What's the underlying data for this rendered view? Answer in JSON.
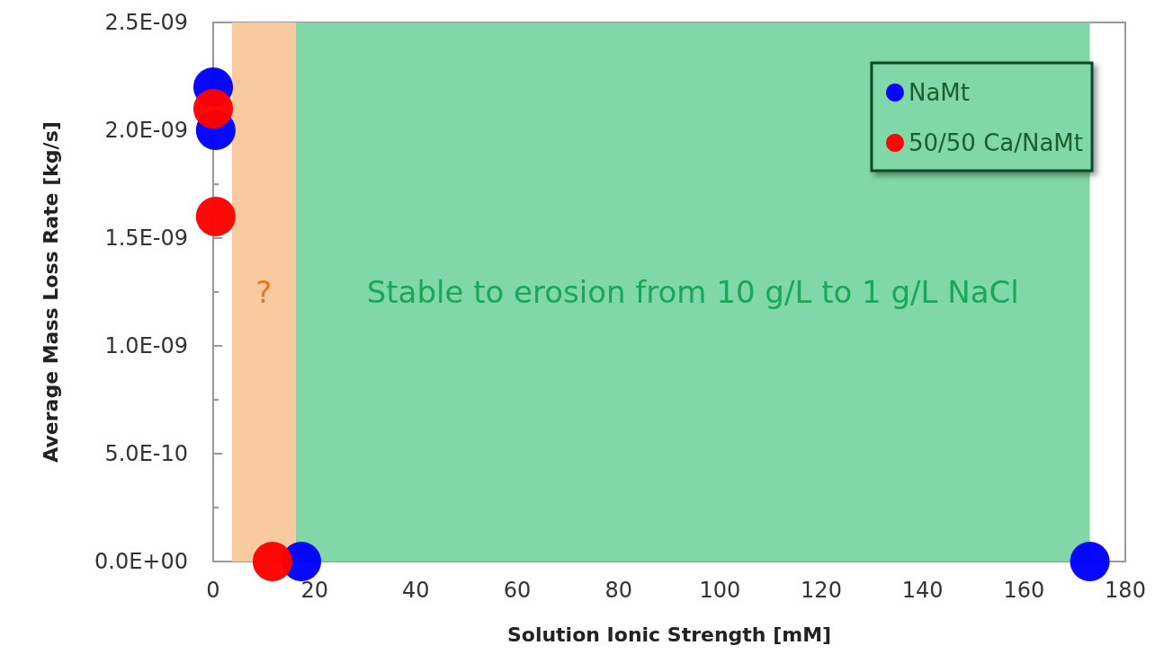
{
  "chart_data": {
    "type": "scatter",
    "xlabel": "Solution Ionic Strength [mM]",
    "ylabel": "Average Mass Loss Rate [kg/s]",
    "series": [
      {
        "name": "NaMt",
        "color": "#0000ff",
        "x": [
          0,
          0.5,
          17.4,
          173
        ],
        "values": [
          2.2e-09,
          2e-09,
          0,
          0
        ]
      },
      {
        "name": "50/50 Ca/NaMt",
        "color": "#ff0000",
        "x": [
          0,
          0.5,
          11.7
        ],
        "values": [
          2.1e-09,
          1.6e-09,
          0
        ]
      }
    ],
    "xlim": [
      0,
      180
    ],
    "xticks": [
      0,
      20,
      40,
      60,
      80,
      100,
      120,
      140,
      160,
      180
    ],
    "ylim": [
      0,
      2.5e-09
    ],
    "yticks": [
      {
        "value": 0,
        "label": "0.0E+00"
      },
      {
        "value": 5e-10,
        "label": "5.0E-10"
      },
      {
        "value": 1e-09,
        "label": "1.0E-09"
      },
      {
        "value": 1.5e-09,
        "label": "1.5E-09"
      },
      {
        "value": 2e-09,
        "label": "2.0E-09"
      },
      {
        "value": 2.5e-09,
        "label": "2.5E-09"
      }
    ],
    "bands": [
      {
        "axis": "x",
        "from": 3.7,
        "to": 16.3,
        "label": "?",
        "color": "#f9c9a0"
      },
      {
        "axis": "x",
        "from": 16.3,
        "to": 173,
        "label": "Stable to erosion from 10 g/L to 1 g/L NaCl",
        "color": "#80d8a8"
      }
    ],
    "marker": "circle",
    "legend": "top right",
    "grid": false
  }
}
